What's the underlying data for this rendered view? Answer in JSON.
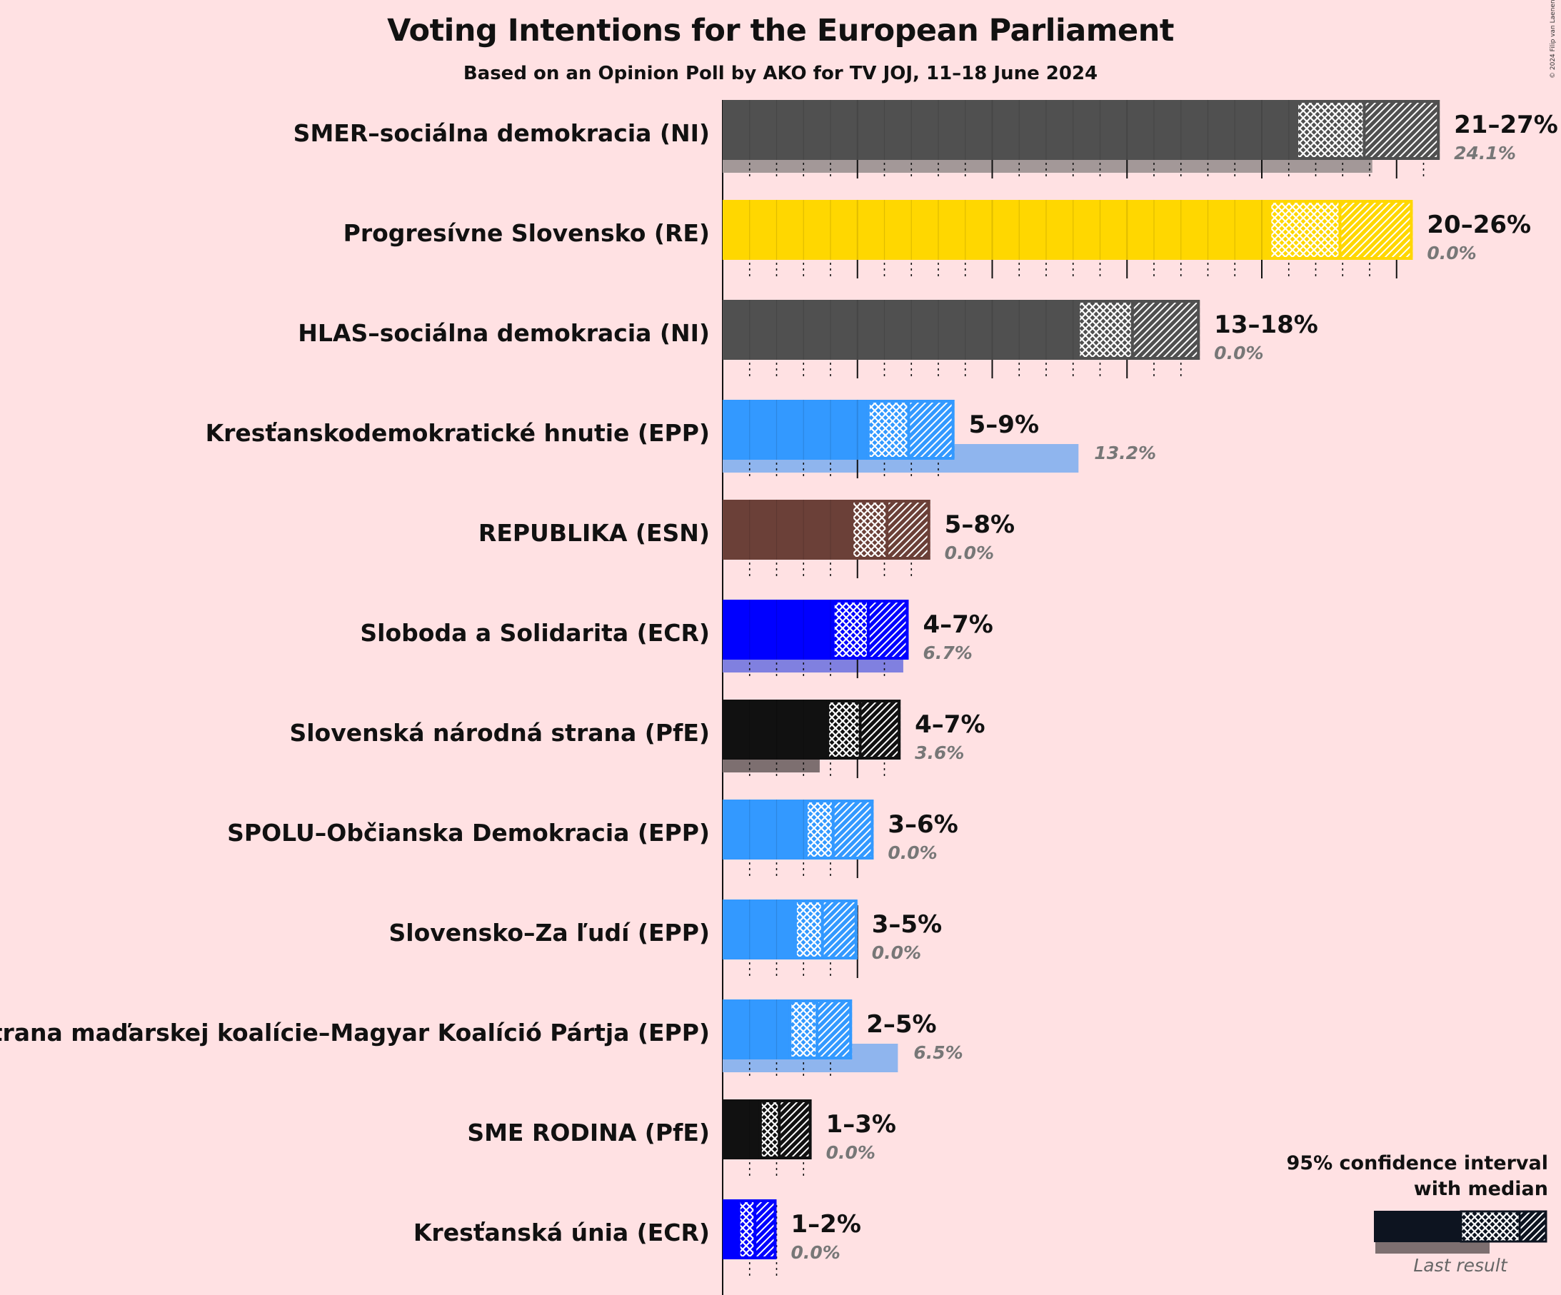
{
  "title": "Voting Intentions for the European Parliament",
  "subtitle": "Based on an Opinion Poll by AKO for TV JOJ, 11–18 June 2024",
  "copyright": "© 2024 Filip van Laenen",
  "legend": {
    "title_line1": "95% confidence interval",
    "title_line2": "with median",
    "last_result": "Last result"
  },
  "chart_data": {
    "type": "bar",
    "orientation": "horizontal",
    "xlim": [
      0,
      27
    ],
    "grid": "vertical gridlines every 1%, solid every 5%",
    "parties": [
      {
        "name": "SMER–sociálna demokracia (NI)",
        "color": "#505050",
        "last_color": "#a39898",
        "ci_low": 21.3,
        "median": 23.8,
        "ci_high": 26.6,
        "range": "21–27%",
        "last": 24.1,
        "last_label": "24.1%"
      },
      {
        "name": "Progresívne Slovensko (RE)",
        "color": "#FFD700",
        "last_color": "#a39898",
        "ci_low": 20.3,
        "median": 22.9,
        "ci_high": 25.6,
        "range": "20–26%",
        "last": 0,
        "last_label": "0.0%"
      },
      {
        "name": "HLAS–sociálna demokracia (NI)",
        "color": "#505050",
        "last_color": "#a39898",
        "ci_low": 13.2,
        "median": 15.2,
        "ci_high": 17.7,
        "range": "13–18%",
        "last": 0,
        "last_label": "0.0%"
      },
      {
        "name": "Kresťanskodemokratické hnutie (EPP)",
        "color": "#3399FF",
        "last_color": "#8fb5ee",
        "ci_low": 5.4,
        "median": 6.9,
        "ci_high": 8.6,
        "range": "5–9%",
        "last": 13.2,
        "last_label": "13.2%"
      },
      {
        "name": "REPUBLIKA (ESN)",
        "color": "#6b4038",
        "last_color": "#a39898",
        "ci_low": 4.8,
        "median": 6.1,
        "ci_high": 7.7,
        "range": "5–8%",
        "last": 0,
        "last_label": "0.0%"
      },
      {
        "name": "Sloboda a Solidarita (ECR)",
        "color": "#0000FF",
        "last_color": "#8080e0",
        "ci_low": 4.1,
        "median": 5.4,
        "ci_high": 6.9,
        "range": "4–7%",
        "last": 6.7,
        "last_label": "6.7%"
      },
      {
        "name": "Slovenská národná strana (PfE)",
        "color": "#111111",
        "last_color": "#7d6f70",
        "ci_low": 3.9,
        "median": 5.1,
        "ci_high": 6.6,
        "range": "4–7%",
        "last": 3.6,
        "last_label": "3.6%"
      },
      {
        "name": "SPOLU–Občianska Demokracia (EPP)",
        "color": "#3399FF",
        "last_color": "#8fb5ee",
        "ci_low": 3.1,
        "median": 4.1,
        "ci_high": 5.6,
        "range": "3–6%",
        "last": 0,
        "last_label": "0.0%"
      },
      {
        "name": "Slovensko–Za ľudí (EPP)",
        "color": "#3399FF",
        "last_color": "#8fb5ee",
        "ci_low": 2.7,
        "median": 3.7,
        "ci_high": 5.0,
        "range": "3–5%",
        "last": 0,
        "last_label": "0.0%"
      },
      {
        "name": "Strana maďarskej koalície–Magyar Koalíció Pártja (EPP)",
        "color": "#3399FF",
        "last_color": "#8fb5ee",
        "ci_low": 2.5,
        "median": 3.5,
        "ci_high": 4.8,
        "range": "2–5%",
        "last": 6.5,
        "last_label": "6.5%"
      },
      {
        "name": "SME RODINA (PfE)",
        "color": "#111111",
        "last_color": "#7d6f70",
        "ci_low": 1.4,
        "median": 2.1,
        "ci_high": 3.3,
        "range": "1–3%",
        "last": 0,
        "last_label": "0.0%"
      },
      {
        "name": "Kresťanská únia (ECR)",
        "color": "#0000FF",
        "last_color": "#8080e0",
        "ci_low": 0.6,
        "median": 1.2,
        "ci_high": 2.0,
        "range": "1–2%",
        "last": 0,
        "last_label": "0.0%"
      }
    ]
  }
}
